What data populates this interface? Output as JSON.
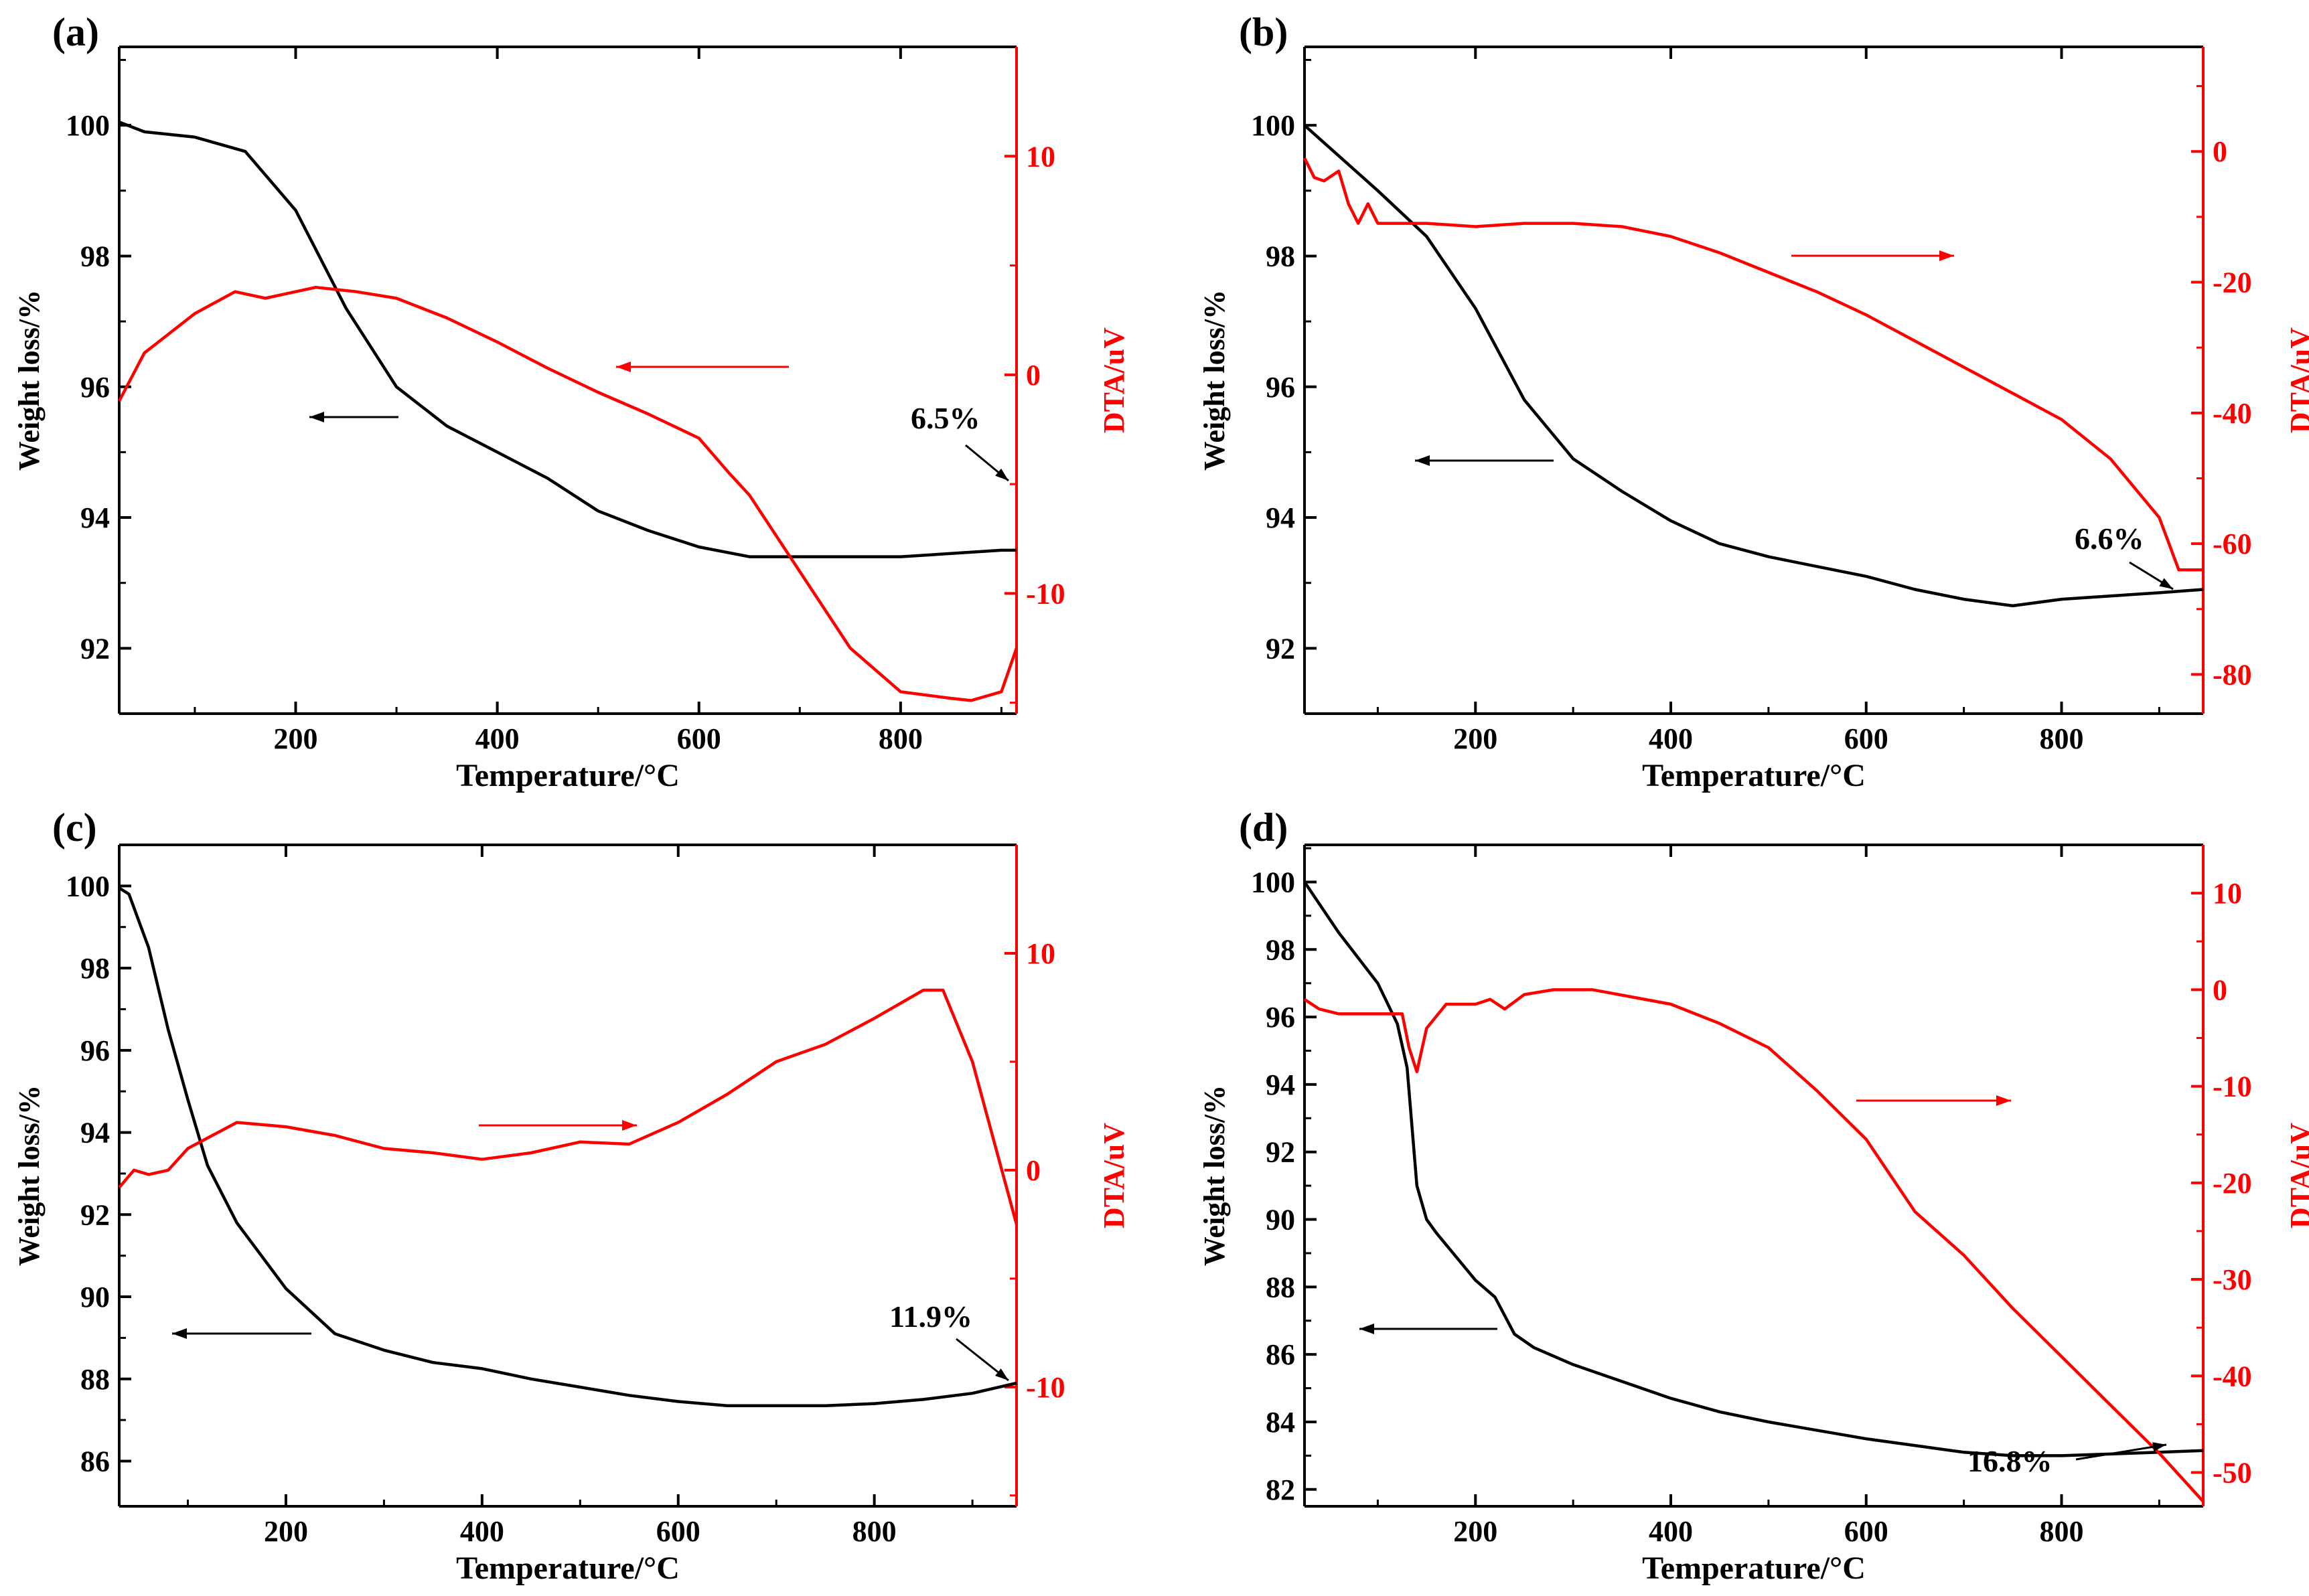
{
  "chart_data": [
    {
      "panel_label": "(a)",
      "type": "line",
      "xlabel": "Temperature/°C",
      "ylabel_left": "Weight loss/%",
      "ylabel_right": "DTA/uV",
      "xlim": [
        25,
        915
      ],
      "xticks": [
        200,
        400,
        600,
        800
      ],
      "ylim_left": [
        91.0,
        101.2
      ],
      "yticks_left": [
        92,
        94,
        96,
        98,
        100
      ],
      "ylim_right": [
        -15.5,
        15.0
      ],
      "yticks_right": [
        -10,
        0,
        10
      ],
      "series": [
        {
          "name": "Weight loss",
          "axis": "left",
          "color": "#000000",
          "x": [
            25,
            50,
            100,
            150,
            200,
            250,
            300,
            350,
            400,
            450,
            500,
            550,
            600,
            650,
            700,
            750,
            800,
            850,
            900,
            915
          ],
          "y": [
            100.05,
            99.9,
            99.82,
            99.6,
            98.7,
            97.2,
            96.0,
            95.4,
            95.0,
            94.6,
            94.1,
            93.8,
            93.55,
            93.4,
            93.4,
            93.4,
            93.4,
            93.45,
            93.5,
            93.5
          ]
        },
        {
          "name": "DTA",
          "axis": "right",
          "color": "#ff0000",
          "x": [
            25,
            50,
            100,
            140,
            170,
            200,
            220,
            260,
            300,
            350,
            400,
            450,
            500,
            550,
            600,
            630,
            650,
            700,
            750,
            800,
            850,
            870,
            900,
            915
          ],
          "y": [
            -1.2,
            1.0,
            2.8,
            3.8,
            3.5,
            3.8,
            4.0,
            3.8,
            3.5,
            2.6,
            1.5,
            0.3,
            -0.8,
            -1.8,
            -2.9,
            -4.5,
            -5.5,
            -9.0,
            -12.5,
            -14.5,
            -14.8,
            -14.9,
            -14.5,
            -12.5
          ]
        }
      ],
      "annotations": [
        {
          "text": "6.5%"
        }
      ]
    },
    {
      "panel_label": "(b)",
      "type": "line",
      "xlabel": "Temperature/°C",
      "ylabel_left": "Weight loss/%",
      "ylabel_right": "DTA/uV",
      "xlim": [
        25,
        945
      ],
      "xticks": [
        200,
        400,
        600,
        800
      ],
      "ylim_left": [
        91.0,
        101.2
      ],
      "yticks_left": [
        92,
        94,
        96,
        98,
        100
      ],
      "ylim_right": [
        -86,
        16
      ],
      "yticks_right": [
        -80,
        -60,
        -40,
        -20,
        0
      ],
      "series": [
        {
          "name": "Weight loss",
          "axis": "left",
          "color": "#000000",
          "x": [
            25,
            100,
            150,
            200,
            250,
            300,
            350,
            400,
            450,
            500,
            550,
            600,
            650,
            700,
            750,
            800,
            850,
            900,
            945
          ],
          "y": [
            100.0,
            99.0,
            98.3,
            97.2,
            95.8,
            94.9,
            94.4,
            93.95,
            93.6,
            93.4,
            93.25,
            93.1,
            92.9,
            92.75,
            92.65,
            92.75,
            92.8,
            92.85,
            92.9
          ]
        },
        {
          "name": "DTA",
          "axis": "right",
          "color": "#ff0000",
          "x": [
            25,
            35,
            45,
            60,
            70,
            80,
            90,
            100,
            150,
            200,
            250,
            300,
            350,
            400,
            450,
            500,
            550,
            600,
            650,
            700,
            750,
            800,
            850,
            900,
            920,
            930,
            945
          ],
          "y": [
            -1,
            -4,
            -4.5,
            -3,
            -8,
            -11,
            -8,
            -11,
            -11,
            -11.5,
            -11,
            -11,
            -11.5,
            -13,
            -15.5,
            -18.5,
            -21.5,
            -25,
            -29,
            -33,
            -37,
            -41,
            -47,
            -56,
            -64,
            -64,
            -64
          ]
        }
      ],
      "annotations": [
        {
          "text": "6.6%"
        }
      ]
    },
    {
      "panel_label": "(c)",
      "type": "line",
      "xlabel": "Temperature/°C",
      "ylabel_left": "Weight loss/%",
      "ylabel_right": "DTA/uV",
      "xlim": [
        30,
        945
      ],
      "xticks": [
        200,
        400,
        600,
        800
      ],
      "ylim_left": [
        84.9,
        101.0
      ],
      "yticks_left": [
        86,
        88,
        90,
        92,
        94,
        96,
        98,
        100
      ],
      "ylim_right": [
        -15.5,
        15.0
      ],
      "yticks_right": [
        -10,
        0,
        10
      ],
      "series": [
        {
          "name": "Weight loss",
          "axis": "left",
          "color": "#000000",
          "x": [
            30,
            40,
            60,
            80,
            100,
            120,
            150,
            200,
            250,
            300,
            350,
            400,
            450,
            500,
            550,
            600,
            650,
            700,
            750,
            800,
            850,
            900,
            945
          ],
          "y": [
            99.95,
            99.8,
            98.5,
            96.5,
            94.8,
            93.2,
            91.8,
            90.2,
            89.1,
            88.7,
            88.4,
            88.25,
            88.0,
            87.8,
            87.6,
            87.45,
            87.35,
            87.35,
            87.35,
            87.4,
            87.5,
            87.65,
            87.9
          ]
        },
        {
          "name": "DTA",
          "axis": "right",
          "color": "#ff0000",
          "x": [
            30,
            45,
            60,
            80,
            100,
            150,
            200,
            250,
            300,
            350,
            400,
            450,
            500,
            550,
            600,
            650,
            700,
            750,
            800,
            850,
            870,
            900,
            945
          ],
          "y": [
            -0.8,
            0,
            -0.2,
            0,
            1.0,
            2.2,
            2.0,
            1.6,
            1.0,
            0.8,
            0.5,
            0.8,
            1.3,
            1.2,
            2.2,
            3.5,
            5.0,
            5.8,
            7.0,
            8.3,
            8.3,
            5.0,
            -2.5
          ]
        }
      ],
      "annotations": [
        {
          "text": "11.9%"
        }
      ]
    },
    {
      "panel_label": "(d)",
      "type": "line",
      "xlabel": "Temperature/°C",
      "ylabel_left": "Weight loss/%",
      "ylabel_right": "DTA/uV",
      "xlim": [
        25,
        945
      ],
      "xticks": [
        200,
        400,
        600,
        800
      ],
      "ylim_left": [
        81.5,
        101.1
      ],
      "yticks_left": [
        82,
        84,
        86,
        88,
        90,
        92,
        94,
        96,
        98,
        100
      ],
      "ylim_right": [
        -53.5,
        15.0
      ],
      "yticks_right": [
        -50,
        -40,
        -30,
        -20,
        -10,
        0,
        10
      ],
      "series": [
        {
          "name": "Weight loss",
          "axis": "left",
          "color": "#000000",
          "x": [
            25,
            60,
            100,
            120,
            130,
            140,
            150,
            160,
            200,
            220,
            240,
            260,
            300,
            350,
            400,
            450,
            500,
            600,
            700,
            750,
            800,
            850,
            900,
            945
          ],
          "y": [
            100.0,
            98.5,
            97.0,
            95.8,
            94.5,
            91.0,
            90.0,
            89.6,
            88.2,
            87.7,
            86.6,
            86.2,
            85.7,
            85.2,
            84.7,
            84.3,
            84.0,
            83.5,
            83.1,
            83.0,
            83.0,
            83.05,
            83.1,
            83.15
          ]
        },
        {
          "name": "DTA",
          "axis": "right",
          "color": "#ff0000",
          "x": [
            25,
            40,
            60,
            100,
            125,
            132,
            140,
            150,
            170,
            200,
            215,
            230,
            250,
            280,
            320,
            400,
            450,
            500,
            550,
            600,
            650,
            700,
            750,
            800,
            850,
            900,
            945
          ],
          "y": [
            -1,
            -2,
            -2.5,
            -2.5,
            -2.5,
            -6,
            -8.5,
            -4,
            -1.5,
            -1.5,
            -1,
            -2,
            -0.5,
            0,
            0,
            -1.5,
            -3.5,
            -6,
            -10.5,
            -15.5,
            -23,
            -27.5,
            -33,
            -38,
            -43,
            -48,
            -53
          ]
        }
      ],
      "annotations": [
        {
          "text": "16.8%"
        }
      ]
    }
  ]
}
